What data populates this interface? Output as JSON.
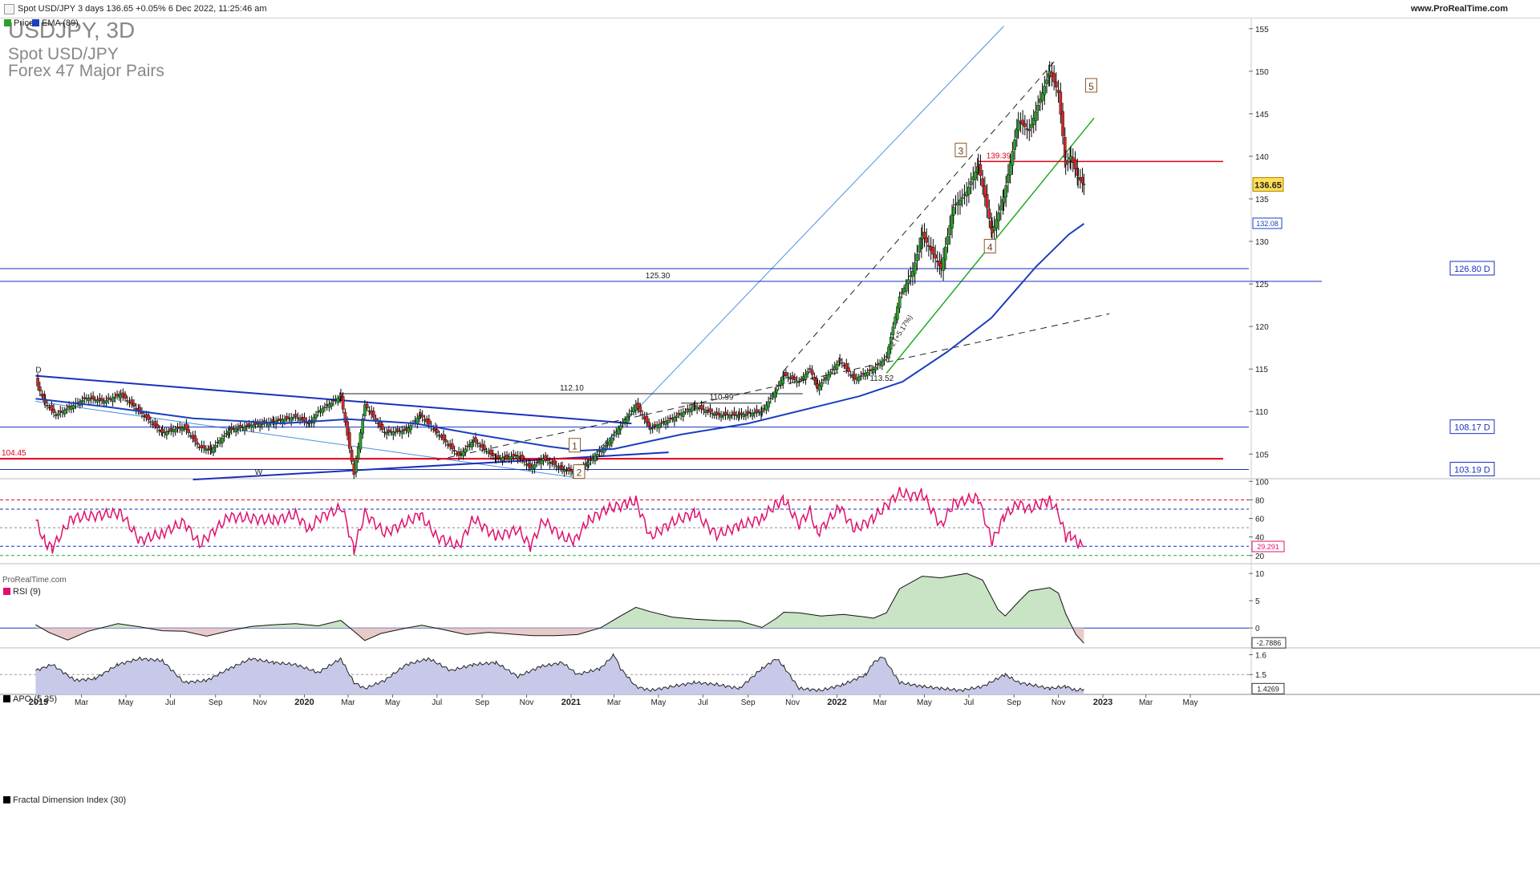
{
  "header": {
    "title": "Spot USD/JPY 3 days 136.65 +0.05% 6 Dec 2022, 11:25:46 am",
    "site": "www.ProRealTime.com"
  },
  "instrument": {
    "symbol_tf": "USDJPY, 3D",
    "name": "Spot USD/JPY",
    "group": "Forex 47 Major Pairs"
  },
  "legend": {
    "price": "Price",
    "ema": "EMA (89)",
    "rsi": "RSI (9)",
    "apo": "APO (5 35)",
    "fdi": "Fractal Dimension Index (30)",
    "watermark": "ProRealTime.com"
  },
  "colors": {
    "up": "#2ca02c",
    "down": "#d62728",
    "ema": "#1a3fbf",
    "level": "#1a2fbf",
    "support": "#e0001a",
    "rsi": "#e0106c",
    "apo_pos": "#c9e3c5",
    "apo_neg": "#e8cbc8",
    "fdi_fill": "#c8c8e8",
    "green_trend": "#22aa22",
    "light_blue": "#4a90e2"
  },
  "chart_data": [
    {
      "type": "candlestick",
      "title": "USDJPY, 3D",
      "x_tick_labels": [
        "2019",
        "Mar",
        "May",
        "Jul",
        "Sep",
        "Nov",
        "2020",
        "Mar",
        "May",
        "Jul",
        "Sep",
        "Nov",
        "2021",
        "Mar",
        "May",
        "Jul",
        "Sep",
        "Nov",
        "2022",
        "Mar",
        "May",
        "Jul",
        "Sep",
        "Nov",
        "2023",
        "Mar",
        "May"
      ],
      "x_tick_dates": [
        "2019-01-01",
        "2019-03-01",
        "2019-05-01",
        "2019-07-01",
        "2019-09-01",
        "2019-11-01",
        "2020-01-01",
        "2020-03-01",
        "2020-05-01",
        "2020-07-01",
        "2020-09-01",
        "2020-11-01",
        "2021-01-01",
        "2021-03-01",
        "2021-05-01",
        "2021-07-01",
        "2021-09-01",
        "2021-11-01",
        "2022-01-01",
        "2022-03-01",
        "2022-05-01",
        "2022-07-01",
        "2022-09-01",
        "2022-11-01",
        "2023-01-01",
        "2023-03-01",
        "2023-05-01"
      ],
      "y_ticks": [
        105,
        110,
        115,
        120,
        125,
        130,
        135,
        140,
        145,
        150,
        155
      ],
      "ylim": [
        102.2,
        156.3
      ],
      "last_price": "136.65",
      "ema_value": "132.08",
      "horizontal_levels": [
        {
          "label": "126.80 D",
          "value": 126.8
        },
        {
          "label": "125.30",
          "value": 125.3
        },
        {
          "label": "108.17 D",
          "value": 108.17
        },
        {
          "label": "103.19 D",
          "value": 103.19
        },
        {
          "label": "104.45",
          "value": 104.45
        },
        {
          "label": "139.39",
          "value": 139.39
        },
        {
          "label": "112.10",
          "value": 112.1
        },
        {
          "label": "110.99",
          "value": 110.99
        }
      ],
      "annotations": [
        "D",
        "W",
        "1",
        "2",
        "3",
        "4",
        "5",
        "2 (+5.17%)",
        "113.52"
      ],
      "price_path": [
        [
          "2018-12-28",
          113.6
        ],
        [
          "2019-01-10",
          111.0
        ],
        [
          "2019-01-25",
          109.6
        ],
        [
          "2019-02-15",
          110.6
        ],
        [
          "2019-03-08",
          111.6
        ],
        [
          "2019-04-01",
          111.2
        ],
        [
          "2019-04-24",
          112.0
        ],
        [
          "2019-05-20",
          110.0
        ],
        [
          "2019-06-20",
          107.5
        ],
        [
          "2019-07-20",
          108.2
        ],
        [
          "2019-08-10",
          105.8
        ],
        [
          "2019-08-26",
          105.5
        ],
        [
          "2019-09-20",
          107.8
        ],
        [
          "2019-10-20",
          108.4
        ],
        [
          "2019-11-20",
          108.8
        ],
        [
          "2019-12-20",
          109.4
        ],
        [
          "2020-01-08",
          108.6
        ],
        [
          "2020-01-20",
          110.0
        ],
        [
          "2020-02-20",
          111.8
        ],
        [
          "2020-03-09",
          102.6
        ],
        [
          "2020-03-24",
          110.8
        ],
        [
          "2020-04-20",
          107.5
        ],
        [
          "2020-05-20",
          107.8
        ],
        [
          "2020-06-08",
          109.6
        ],
        [
          "2020-07-01",
          107.5
        ],
        [
          "2020-07-31",
          104.8
        ],
        [
          "2020-08-20",
          106.6
        ],
        [
          "2020-09-20",
          104.5
        ],
        [
          "2020-10-20",
          104.8
        ],
        [
          "2020-11-06",
          103.4
        ],
        [
          "2020-11-24",
          104.5
        ],
        [
          "2020-12-20",
          103.2
        ],
        [
          "2021-01-06",
          102.9
        ],
        [
          "2021-01-25",
          104.0
        ],
        [
          "2021-02-20",
          106.2
        ],
        [
          "2021-03-31",
          110.8
        ],
        [
          "2021-04-20",
          108.0
        ],
        [
          "2021-05-20",
          109.2
        ],
        [
          "2021-06-20",
          110.6
        ],
        [
          "2021-07-20",
          109.6
        ],
        [
          "2021-08-20",
          109.6
        ],
        [
          "2021-09-20",
          110.0
        ],
        [
          "2021-10-10",
          112.6
        ],
        [
          "2021-10-20",
          114.3
        ],
        [
          "2021-11-10",
          113.5
        ],
        [
          "2021-11-25",
          115.0
        ],
        [
          "2021-12-05",
          112.8
        ],
        [
          "2022-01-05",
          116.0
        ],
        [
          "2022-01-25",
          113.8
        ],
        [
          "2022-02-20",
          115.0
        ],
        [
          "2022-03-10",
          116.4
        ],
        [
          "2022-03-28",
          123.5
        ],
        [
          "2022-04-15",
          126.5
        ],
        [
          "2022-04-28",
          130.8
        ],
        [
          "2022-05-24",
          126.8
        ],
        [
          "2022-06-10",
          134.0
        ],
        [
          "2022-06-28",
          135.8
        ],
        [
          "2022-07-14",
          139.0
        ],
        [
          "2022-08-02",
          131.0
        ],
        [
          "2022-08-18",
          135.2
        ],
        [
          "2022-09-07",
          144.2
        ],
        [
          "2022-09-22",
          143.0
        ],
        [
          "2022-10-20",
          150.0
        ],
        [
          "2022-11-01",
          147.5
        ],
        [
          "2022-11-11",
          139.0
        ],
        [
          "2022-11-18",
          140.0
        ],
        [
          "2022-11-28",
          137.5
        ],
        [
          "2022-12-06",
          136.65
        ]
      ],
      "ema_path": [
        [
          "2018-12-28",
          111.5
        ],
        [
          "2019-04-01",
          110.6
        ],
        [
          "2019-08-01",
          109.2
        ],
        [
          "2019-12-01",
          108.6
        ],
        [
          "2020-03-01",
          109.1
        ],
        [
          "2020-06-01",
          108.6
        ],
        [
          "2020-09-01",
          107.2
        ],
        [
          "2020-12-01",
          105.9
        ],
        [
          "2021-01-15",
          105.4
        ],
        [
          "2021-03-01",
          105.6
        ],
        [
          "2021-06-01",
          107.3
        ],
        [
          "2021-09-01",
          108.6
        ],
        [
          "2021-12-01",
          110.5
        ],
        [
          "2022-02-01",
          111.8
        ],
        [
          "2022-04-01",
          113.5
        ],
        [
          "2022-06-01",
          117.0
        ],
        [
          "2022-08-01",
          121.0
        ],
        [
          "2022-10-01",
          127.0
        ],
        [
          "2022-11-15",
          130.8
        ],
        [
          "2022-12-06",
          132.08
        ]
      ]
    },
    {
      "type": "line",
      "title": "RSI (9)",
      "y_ticks": [
        20,
        40,
        60,
        80,
        100
      ],
      "ylim": [
        12,
        102
      ],
      "last_value": "29.291",
      "points": [
        [
          "2018-12-28",
          58
        ],
        [
          "2019-01-10",
          34
        ],
        [
          "2019-01-20",
          28
        ],
        [
          "2019-02-15",
          60
        ],
        [
          "2019-03-08",
          62
        ],
        [
          "2019-04-24",
          66
        ],
        [
          "2019-05-20",
          36
        ],
        [
          "2019-06-20",
          44
        ],
        [
          "2019-07-20",
          56
        ],
        [
          "2019-08-10",
          32
        ],
        [
          "2019-09-20",
          62
        ],
        [
          "2019-10-20",
          60
        ],
        [
          "2019-11-20",
          58
        ],
        [
          "2019-12-20",
          64
        ],
        [
          "2020-01-08",
          48
        ],
        [
          "2020-01-20",
          60
        ],
        [
          "2020-02-22",
          72
        ],
        [
          "2020-03-09",
          26
        ],
        [
          "2020-03-24",
          66
        ],
        [
          "2020-04-20",
          44
        ],
        [
          "2020-05-20",
          56
        ],
        [
          "2020-06-08",
          64
        ],
        [
          "2020-07-01",
          40
        ],
        [
          "2020-07-31",
          30
        ],
        [
          "2020-08-20",
          60
        ],
        [
          "2020-09-20",
          40
        ],
        [
          "2020-10-20",
          48
        ],
        [
          "2020-11-06",
          30
        ],
        [
          "2020-11-24",
          58
        ],
        [
          "2020-12-20",
          40
        ],
        [
          "2021-01-06",
          36
        ],
        [
          "2021-01-25",
          58
        ],
        [
          "2021-02-20",
          70
        ],
        [
          "2021-03-20",
          76
        ],
        [
          "2021-03-31",
          79
        ],
        [
          "2021-04-20",
          40
        ],
        [
          "2021-05-20",
          56
        ],
        [
          "2021-06-20",
          66
        ],
        [
          "2021-07-20",
          42
        ],
        [
          "2021-08-20",
          52
        ],
        [
          "2021-09-20",
          60
        ],
        [
          "2021-10-10",
          76
        ],
        [
          "2021-10-20",
          80
        ],
        [
          "2021-11-10",
          54
        ],
        [
          "2021-11-25",
          68
        ],
        [
          "2021-12-05",
          44
        ],
        [
          "2022-01-05",
          72
        ],
        [
          "2022-01-25",
          48
        ],
        [
          "2022-02-20",
          60
        ],
        [
          "2022-03-28",
          88
        ],
        [
          "2022-04-15",
          84
        ],
        [
          "2022-04-28",
          87
        ],
        [
          "2022-05-24",
          52
        ],
        [
          "2022-06-10",
          76
        ],
        [
          "2022-06-28",
          80
        ],
        [
          "2022-07-14",
          82
        ],
        [
          "2022-08-02",
          34
        ],
        [
          "2022-08-18",
          62
        ],
        [
          "2022-09-07",
          76
        ],
        [
          "2022-09-22",
          70
        ],
        [
          "2022-10-20",
          80
        ],
        [
          "2022-11-01",
          66
        ],
        [
          "2022-11-11",
          40
        ],
        [
          "2022-11-18",
          42
        ],
        [
          "2022-11-28",
          32
        ],
        [
          "2022-12-06",
          29.291
        ]
      ]
    },
    {
      "type": "area",
      "title": "APO (5 35)",
      "y_ticks": [
        0,
        5,
        10
      ],
      "ylim": [
        -3.5,
        11.5
      ],
      "last_value": "-2.7886",
      "points": [
        [
          "2018-12-28",
          0.6
        ],
        [
          "2019-01-15",
          -0.8
        ],
        [
          "2019-02-10",
          -2.2
        ],
        [
          "2019-03-10",
          -0.6
        ],
        [
          "2019-04-20",
          0.8
        ],
        [
          "2019-05-20",
          0.2
        ],
        [
          "2019-06-20",
          -0.5
        ],
        [
          "2019-07-20",
          -0.6
        ],
        [
          "2019-08-20",
          -1.5
        ],
        [
          "2019-09-20",
          -0.5
        ],
        [
          "2019-10-20",
          0.3
        ],
        [
          "2019-11-20",
          0.6
        ],
        [
          "2019-12-20",
          0.8
        ],
        [
          "2020-01-20",
          0.4
        ],
        [
          "2020-02-20",
          1.4
        ],
        [
          "2020-03-09",
          -0.6
        ],
        [
          "2020-03-24",
          -2.3
        ],
        [
          "2020-04-15",
          -1.0
        ],
        [
          "2020-05-20",
          0.0
        ],
        [
          "2020-06-10",
          0.5
        ],
        [
          "2020-07-10",
          -0.3
        ],
        [
          "2020-08-10",
          -1.2
        ],
        [
          "2020-09-10",
          -0.8
        ],
        [
          "2020-10-10",
          -1.1
        ],
        [
          "2020-11-10",
          -1.4
        ],
        [
          "2020-12-10",
          -1.4
        ],
        [
          "2021-01-10",
          -1.2
        ],
        [
          "2021-02-10",
          0.0
        ],
        [
          "2021-03-10",
          2.2
        ],
        [
          "2021-03-31",
          3.8
        ],
        [
          "2021-04-20",
          3.0
        ],
        [
          "2021-05-20",
          2.0
        ],
        [
          "2021-06-20",
          1.6
        ],
        [
          "2021-07-20",
          1.4
        ],
        [
          "2021-08-20",
          1.3
        ],
        [
          "2021-09-20",
          0.1
        ],
        [
          "2021-10-10",
          1.8
        ],
        [
          "2021-10-20",
          2.9
        ],
        [
          "2021-11-10",
          2.8
        ],
        [
          "2021-12-10",
          2.2
        ],
        [
          "2022-01-10",
          2.5
        ],
        [
          "2022-02-10",
          2.0
        ],
        [
          "2022-02-20",
          1.8
        ],
        [
          "2022-03-10",
          2.8
        ],
        [
          "2022-03-28",
          7.2
        ],
        [
          "2022-04-28",
          9.5
        ],
        [
          "2022-05-24",
          9.2
        ],
        [
          "2022-06-10",
          9.6
        ],
        [
          "2022-06-28",
          10.0
        ],
        [
          "2022-07-20",
          8.8
        ],
        [
          "2022-08-10",
          3.4
        ],
        [
          "2022-08-20",
          2.2
        ],
        [
          "2022-09-07",
          4.8
        ],
        [
          "2022-09-22",
          6.8
        ],
        [
          "2022-10-20",
          7.4
        ],
        [
          "2022-11-01",
          6.4
        ],
        [
          "2022-11-11",
          2.6
        ],
        [
          "2022-11-25",
          -1.2
        ],
        [
          "2022-12-06",
          -2.7886
        ]
      ]
    },
    {
      "type": "area",
      "title": "Fractal Dimension Index (30)",
      "y_ticks": [
        1.6,
        1.5
      ],
      "ylim": [
        1.4,
        1.63
      ],
      "last_value": "1.4269",
      "points": [
        [
          "2018-12-28",
          1.52
        ],
        [
          "2019-01-20",
          1.55
        ],
        [
          "2019-02-20",
          1.47
        ],
        [
          "2019-03-20",
          1.48
        ],
        [
          "2019-04-20",
          1.55
        ],
        [
          "2019-05-20",
          1.58
        ],
        [
          "2019-06-20",
          1.57
        ],
        [
          "2019-07-20",
          1.46
        ],
        [
          "2019-08-20",
          1.47
        ],
        [
          "2019-09-20",
          1.53
        ],
        [
          "2019-10-20",
          1.58
        ],
        [
          "2019-11-20",
          1.56
        ],
        [
          "2019-12-20",
          1.55
        ],
        [
          "2020-01-20",
          1.51
        ],
        [
          "2020-02-20",
          1.58
        ],
        [
          "2020-03-09",
          1.46
        ],
        [
          "2020-03-24",
          1.43
        ],
        [
          "2020-04-20",
          1.47
        ],
        [
          "2020-05-20",
          1.55
        ],
        [
          "2020-06-20",
          1.58
        ],
        [
          "2020-07-20",
          1.52
        ],
        [
          "2020-08-20",
          1.55
        ],
        [
          "2020-09-20",
          1.56
        ],
        [
          "2020-10-20",
          1.49
        ],
        [
          "2020-11-20",
          1.54
        ],
        [
          "2020-12-20",
          1.56
        ],
        [
          "2021-01-10",
          1.5
        ],
        [
          "2021-02-10",
          1.53
        ],
        [
          "2021-03-01",
          1.6
        ],
        [
          "2021-03-10",
          1.53
        ],
        [
          "2021-03-31",
          1.44
        ],
        [
          "2021-04-20",
          1.42
        ],
        [
          "2021-05-20",
          1.44
        ],
        [
          "2021-06-20",
          1.46
        ],
        [
          "2021-07-20",
          1.45
        ],
        [
          "2021-08-20",
          1.43
        ],
        [
          "2021-09-20",
          1.53
        ],
        [
          "2021-10-10",
          1.58
        ],
        [
          "2021-10-20",
          1.54
        ],
        [
          "2021-11-10",
          1.43
        ],
        [
          "2021-12-10",
          1.42
        ],
        [
          "2022-01-10",
          1.45
        ],
        [
          "2022-02-10",
          1.5
        ],
        [
          "2022-02-20",
          1.56
        ],
        [
          "2022-03-05",
          1.59
        ],
        [
          "2022-03-28",
          1.46
        ],
        [
          "2022-04-28",
          1.44
        ],
        [
          "2022-05-24",
          1.43
        ],
        [
          "2022-06-20",
          1.42
        ],
        [
          "2022-07-20",
          1.44
        ],
        [
          "2022-08-20",
          1.5
        ],
        [
          "2022-09-07",
          1.46
        ],
        [
          "2022-09-22",
          1.45
        ],
        [
          "2022-10-20",
          1.43
        ],
        [
          "2022-11-11",
          1.44
        ],
        [
          "2022-11-25",
          1.42
        ],
        [
          "2022-12-06",
          1.4269
        ]
      ]
    }
  ]
}
